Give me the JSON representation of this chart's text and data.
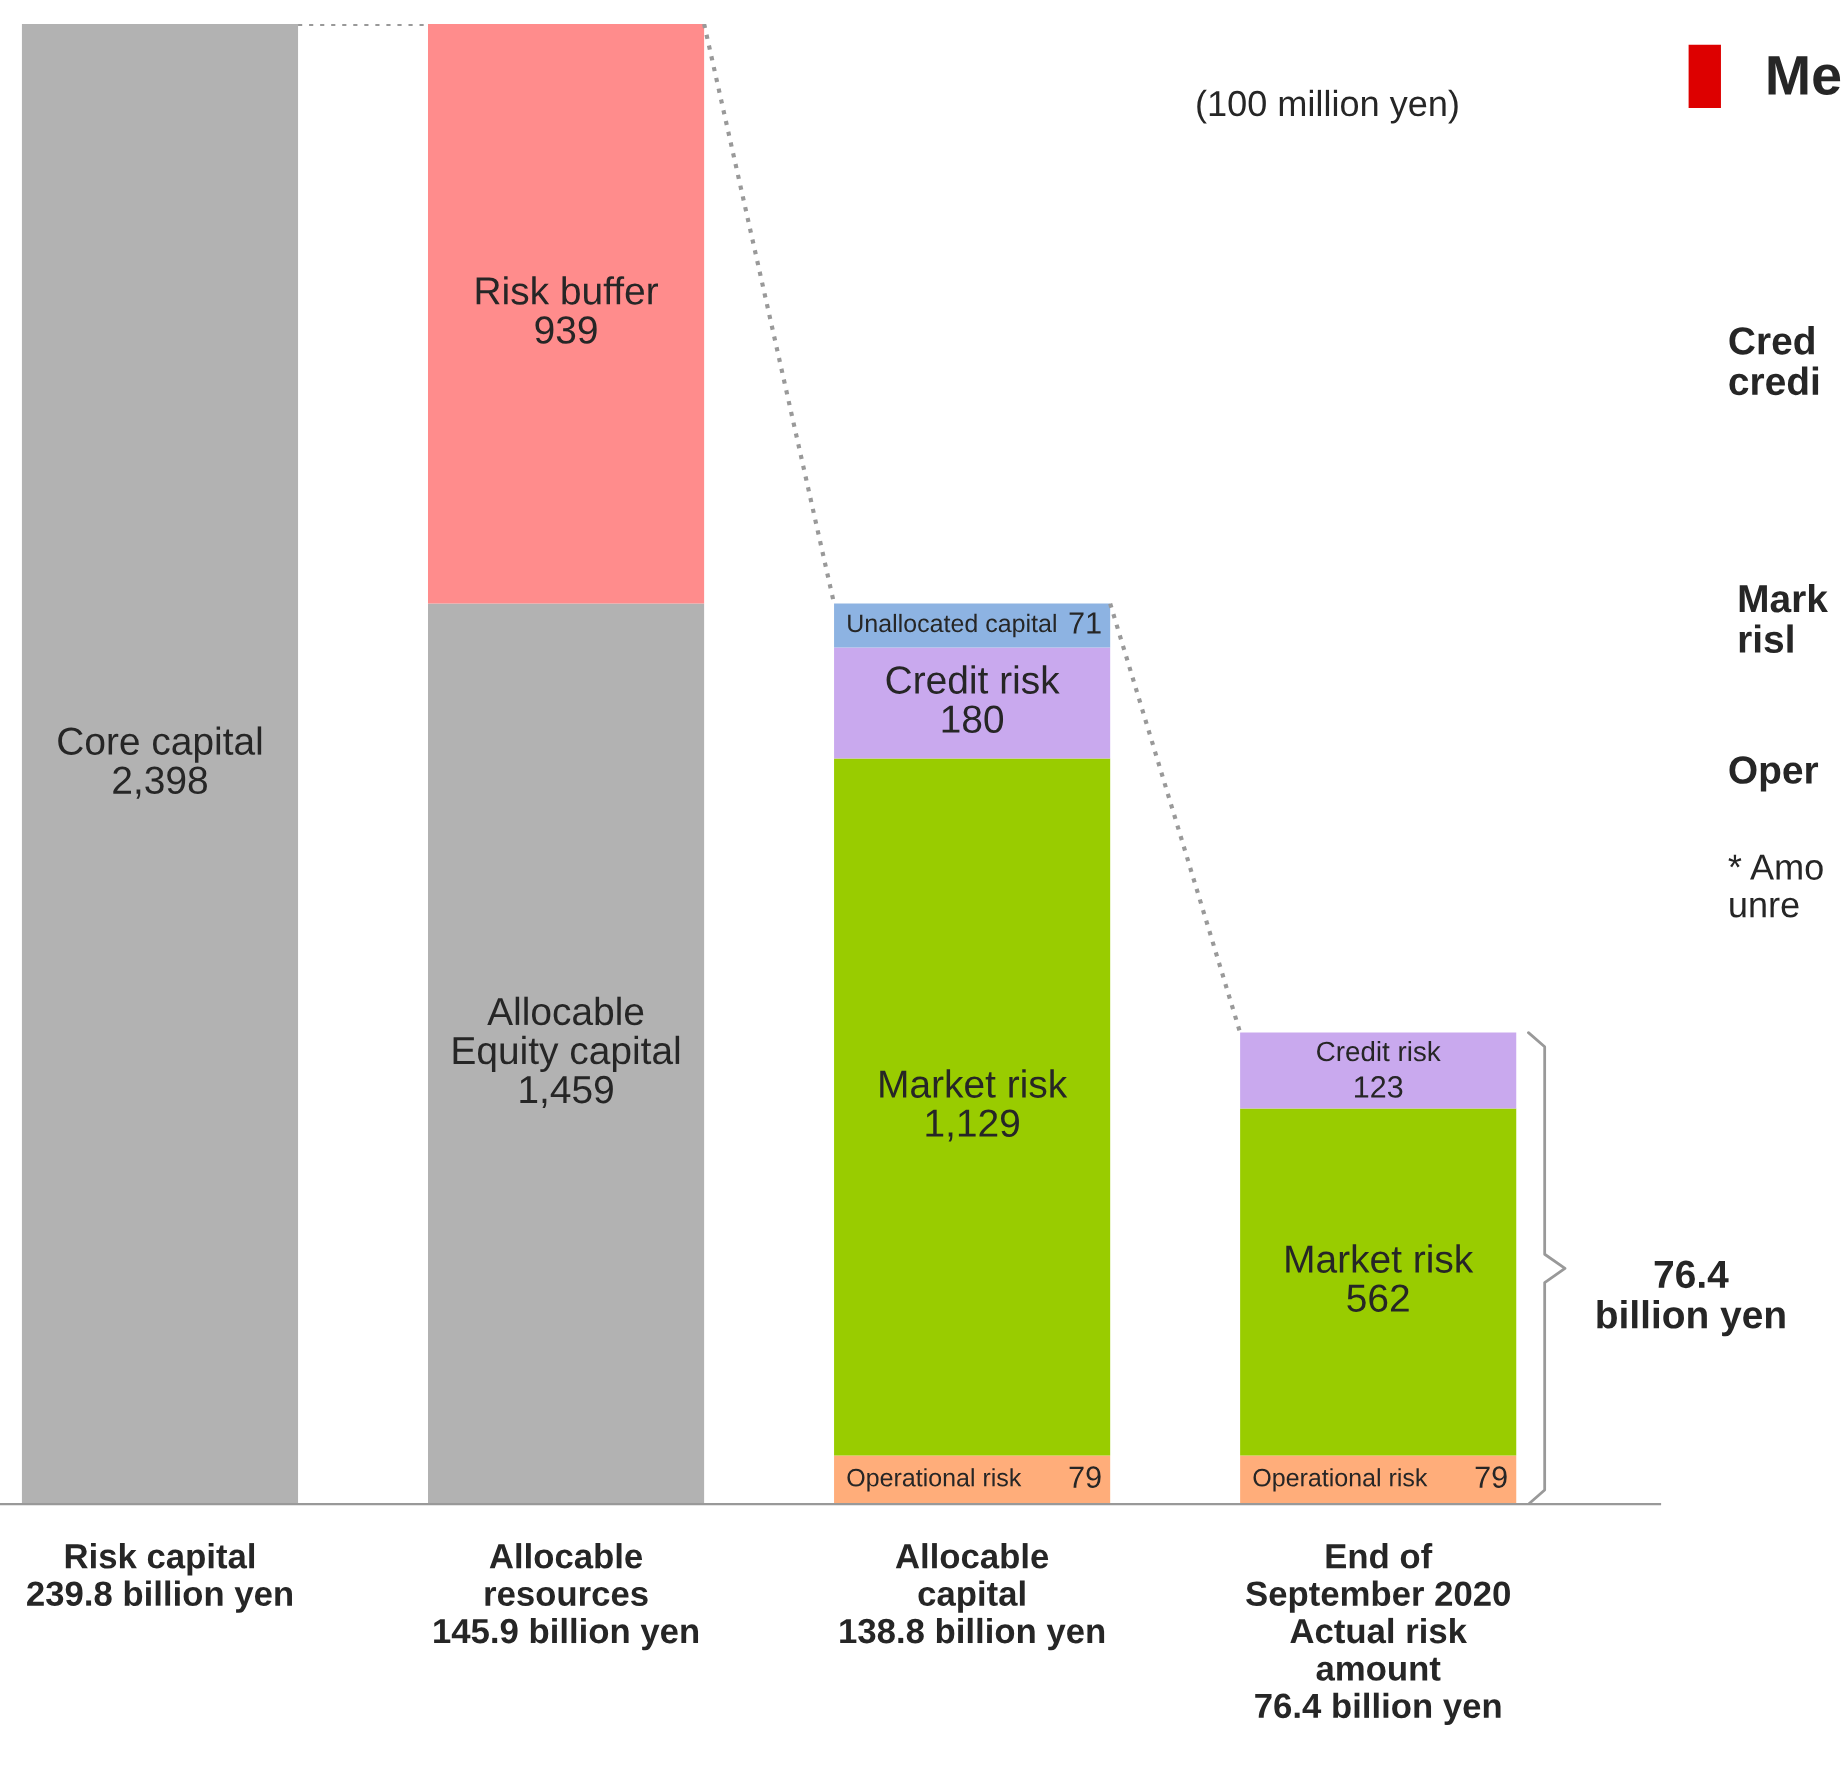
{
  "chart_data": {
    "type": "bar",
    "stacked": true,
    "categories": [
      "Risk capital\n239.8 billion yen",
      "Allocable\nresources\n145.9 billion yen",
      "Allocable\ncapital\n138.8 billion yen",
      "End of\nSeptember 2020\nActual risk\namount\n76.4 billion yen"
    ],
    "series": [
      {
        "name": "Core capital",
        "color": "#b2b2b2",
        "values": [
          2398,
          null,
          null,
          null
        ],
        "value_labels": [
          "2,398",
          null,
          null,
          null
        ]
      },
      {
        "name": "Allocable\nEquity capital",
        "color": "#b2b2b2",
        "values": [
          null,
          1459,
          null,
          null
        ],
        "value_labels": [
          null,
          "1,459",
          null,
          null
        ]
      },
      {
        "name": "Risk buffer",
        "color": "#ff8c8c",
        "values": [
          null,
          939,
          null,
          null
        ],
        "value_labels": [
          null,
          "939",
          null,
          null
        ]
      },
      {
        "name": "Operational risk",
        "color": "#ffad7a",
        "values": [
          null,
          null,
          79,
          79
        ],
        "value_labels": [
          null,
          null,
          "79",
          "79"
        ]
      },
      {
        "name": "Market risk",
        "color": "#99cc00",
        "values": [
          null,
          null,
          1129,
          562
        ],
        "value_labels": [
          null,
          null,
          "1,129",
          "562"
        ]
      },
      {
        "name": "Credit risk",
        "color": "#c9a9ee",
        "values": [
          null,
          null,
          180,
          123
        ],
        "value_labels": [
          null,
          null,
          "180",
          "123"
        ]
      },
      {
        "name": "Unallocated capital",
        "color": "#8db3e2",
        "values": [
          null,
          null,
          71,
          null
        ],
        "value_labels": [
          null,
          null,
          "71",
          null
        ]
      }
    ],
    "annotations": [
      "(100 million yen)",
      "76.4\nbillion yen",
      "Me",
      "Cred\ncredi",
      "Mark\nrisl",
      "Oper",
      "* Amo\nunre"
    ]
  }
}
